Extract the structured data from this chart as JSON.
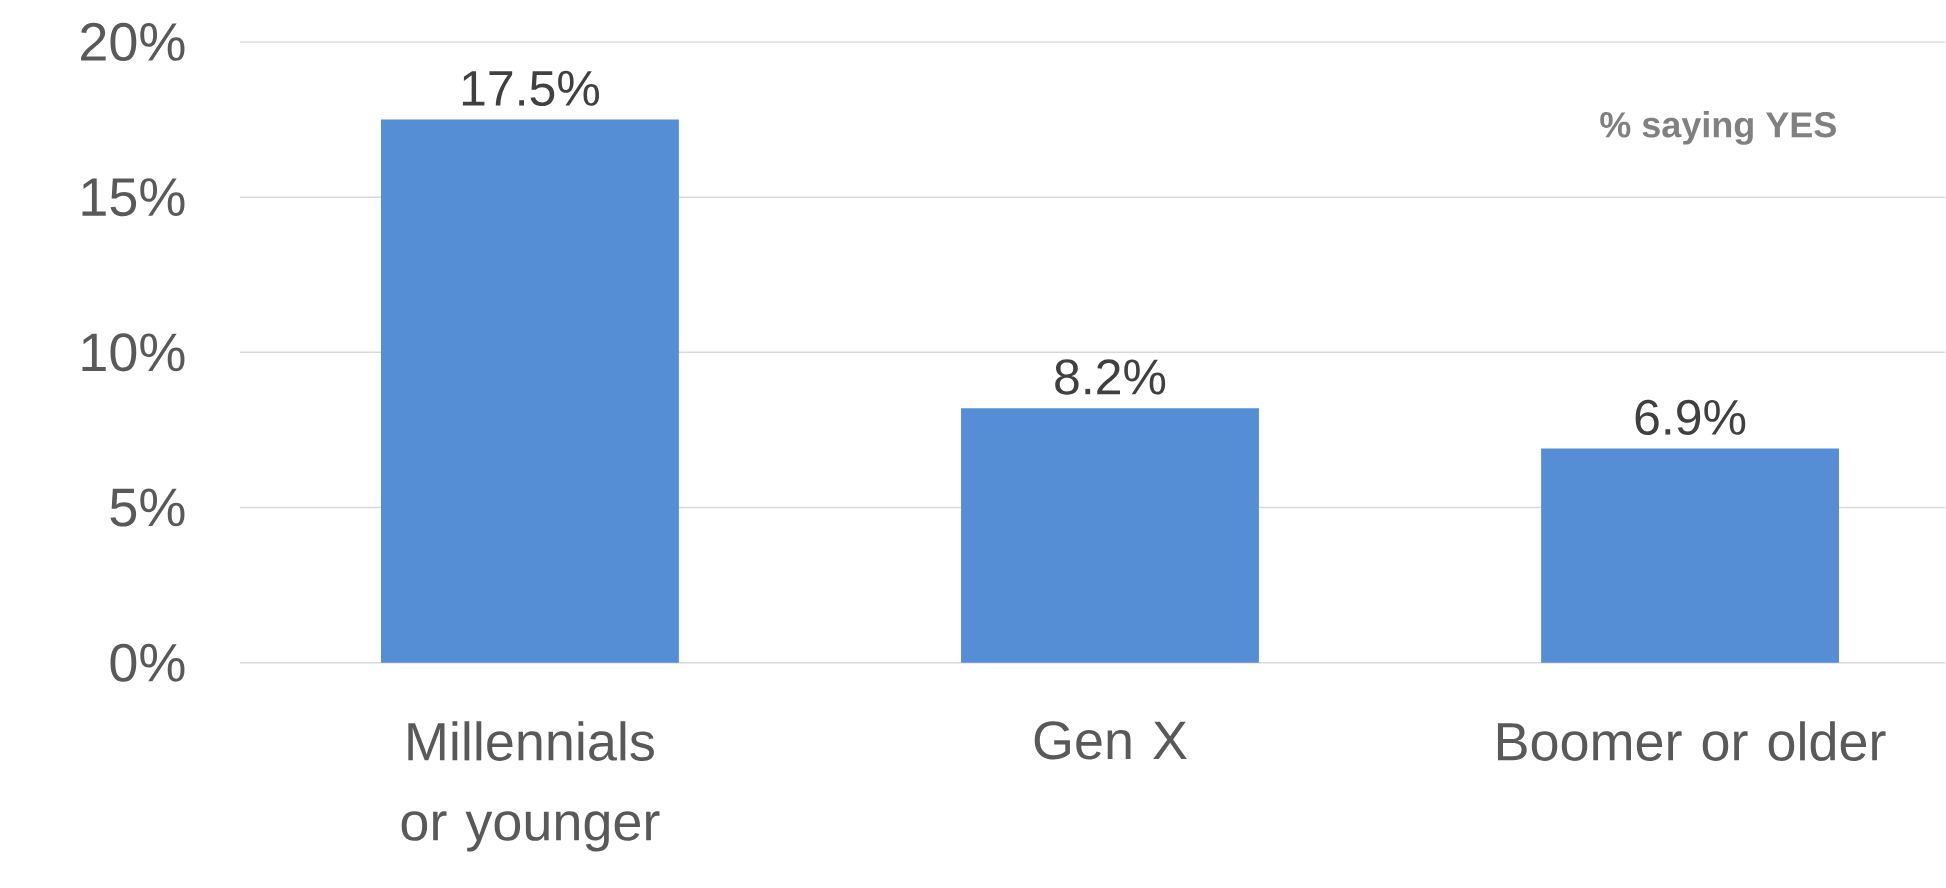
{
  "chart_data": {
    "type": "bar",
    "categories": [
      "Millennials or younger",
      "Gen X",
      "Boomer or older"
    ],
    "values": [
      17.5,
      8.2,
      6.9
    ],
    "value_labels": [
      "17.5%",
      "8.2%",
      "6.9%"
    ],
    "color": "#558ed5",
    "ylim": [
      0,
      20
    ],
    "yticks": [
      {
        "value": 0,
        "label": "0%"
      },
      {
        "value": 5,
        "label": "5%"
      },
      {
        "value": 10,
        "label": "10%"
      },
      {
        "value": 15,
        "label": "15%"
      },
      {
        "value": 20,
        "label": "20%"
      }
    ],
    "grid": "y",
    "annotations": [
      "% saying YES"
    ]
  }
}
